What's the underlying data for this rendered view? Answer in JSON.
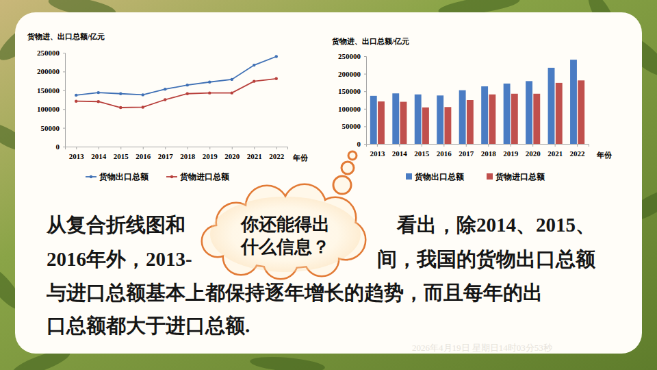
{
  "chart_data": [
    {
      "type": "line",
      "y_label": "货物进、出口总额/亿元",
      "x_label": "年份",
      "categories": [
        "2013",
        "2014",
        "2015",
        "2016",
        "2017",
        "2018",
        "2019",
        "2020",
        "2021",
        "2022"
      ],
      "series": [
        {
          "name": "货物出口总额",
          "color": "#3f70b5",
          "values": [
            137000,
            144000,
            141000,
            138000,
            153000,
            164000,
            172000,
            179000,
            217000,
            240000
          ]
        },
        {
          "name": "货物进口总额",
          "color": "#b8403c",
          "values": [
            121000,
            120000,
            104000,
            105000,
            125000,
            141000,
            143000,
            143000,
            174000,
            181000
          ]
        }
      ],
      "marker": "circle",
      "ylim": [
        0,
        250000
      ],
      "yticks": [
        0,
        50000,
        100000,
        150000,
        200000,
        250000
      ],
      "grid": false,
      "legend": "bottom"
    },
    {
      "type": "bar",
      "y_label": "货物进、出口总额/亿元",
      "x_label": "年份",
      "categories": [
        "2013",
        "2014",
        "2015",
        "2016",
        "2017",
        "2018",
        "2019",
        "2020",
        "2021",
        "2022"
      ],
      "series": [
        {
          "name": "货物出口总额",
          "color": "#4a7cc3",
          "values": [
            137000,
            144000,
            141000,
            138000,
            153000,
            164000,
            172000,
            179000,
            217000,
            240000
          ]
        },
        {
          "name": "货物进口总额",
          "color": "#c0504d",
          "values": [
            121000,
            120000,
            104000,
            105000,
            125000,
            141000,
            143000,
            143000,
            174000,
            181000
          ]
        }
      ],
      "ylim": [
        0,
        250000
      ],
      "yticks": [
        0,
        50000,
        100000,
        150000,
        200000,
        250000
      ],
      "grid": false,
      "legend": "bottom"
    }
  ],
  "slide": {
    "paragraph_lines": [
      [
        "从复合折线图和",
        "看出，除2014、2015、"
      ],
      [
        "2016年外，2013-",
        "间，我国的货物出口总额"
      ],
      [
        "与进口总额基本上都保持逐年增长的趋势，而且每年的出"
      ],
      [
        "口总额都大于进口总额."
      ]
    ],
    "callout_lines": [
      "你还能得出",
      "什么信息？"
    ],
    "timestamp": "2026年4月19日 星期日14时03分53秒"
  }
}
